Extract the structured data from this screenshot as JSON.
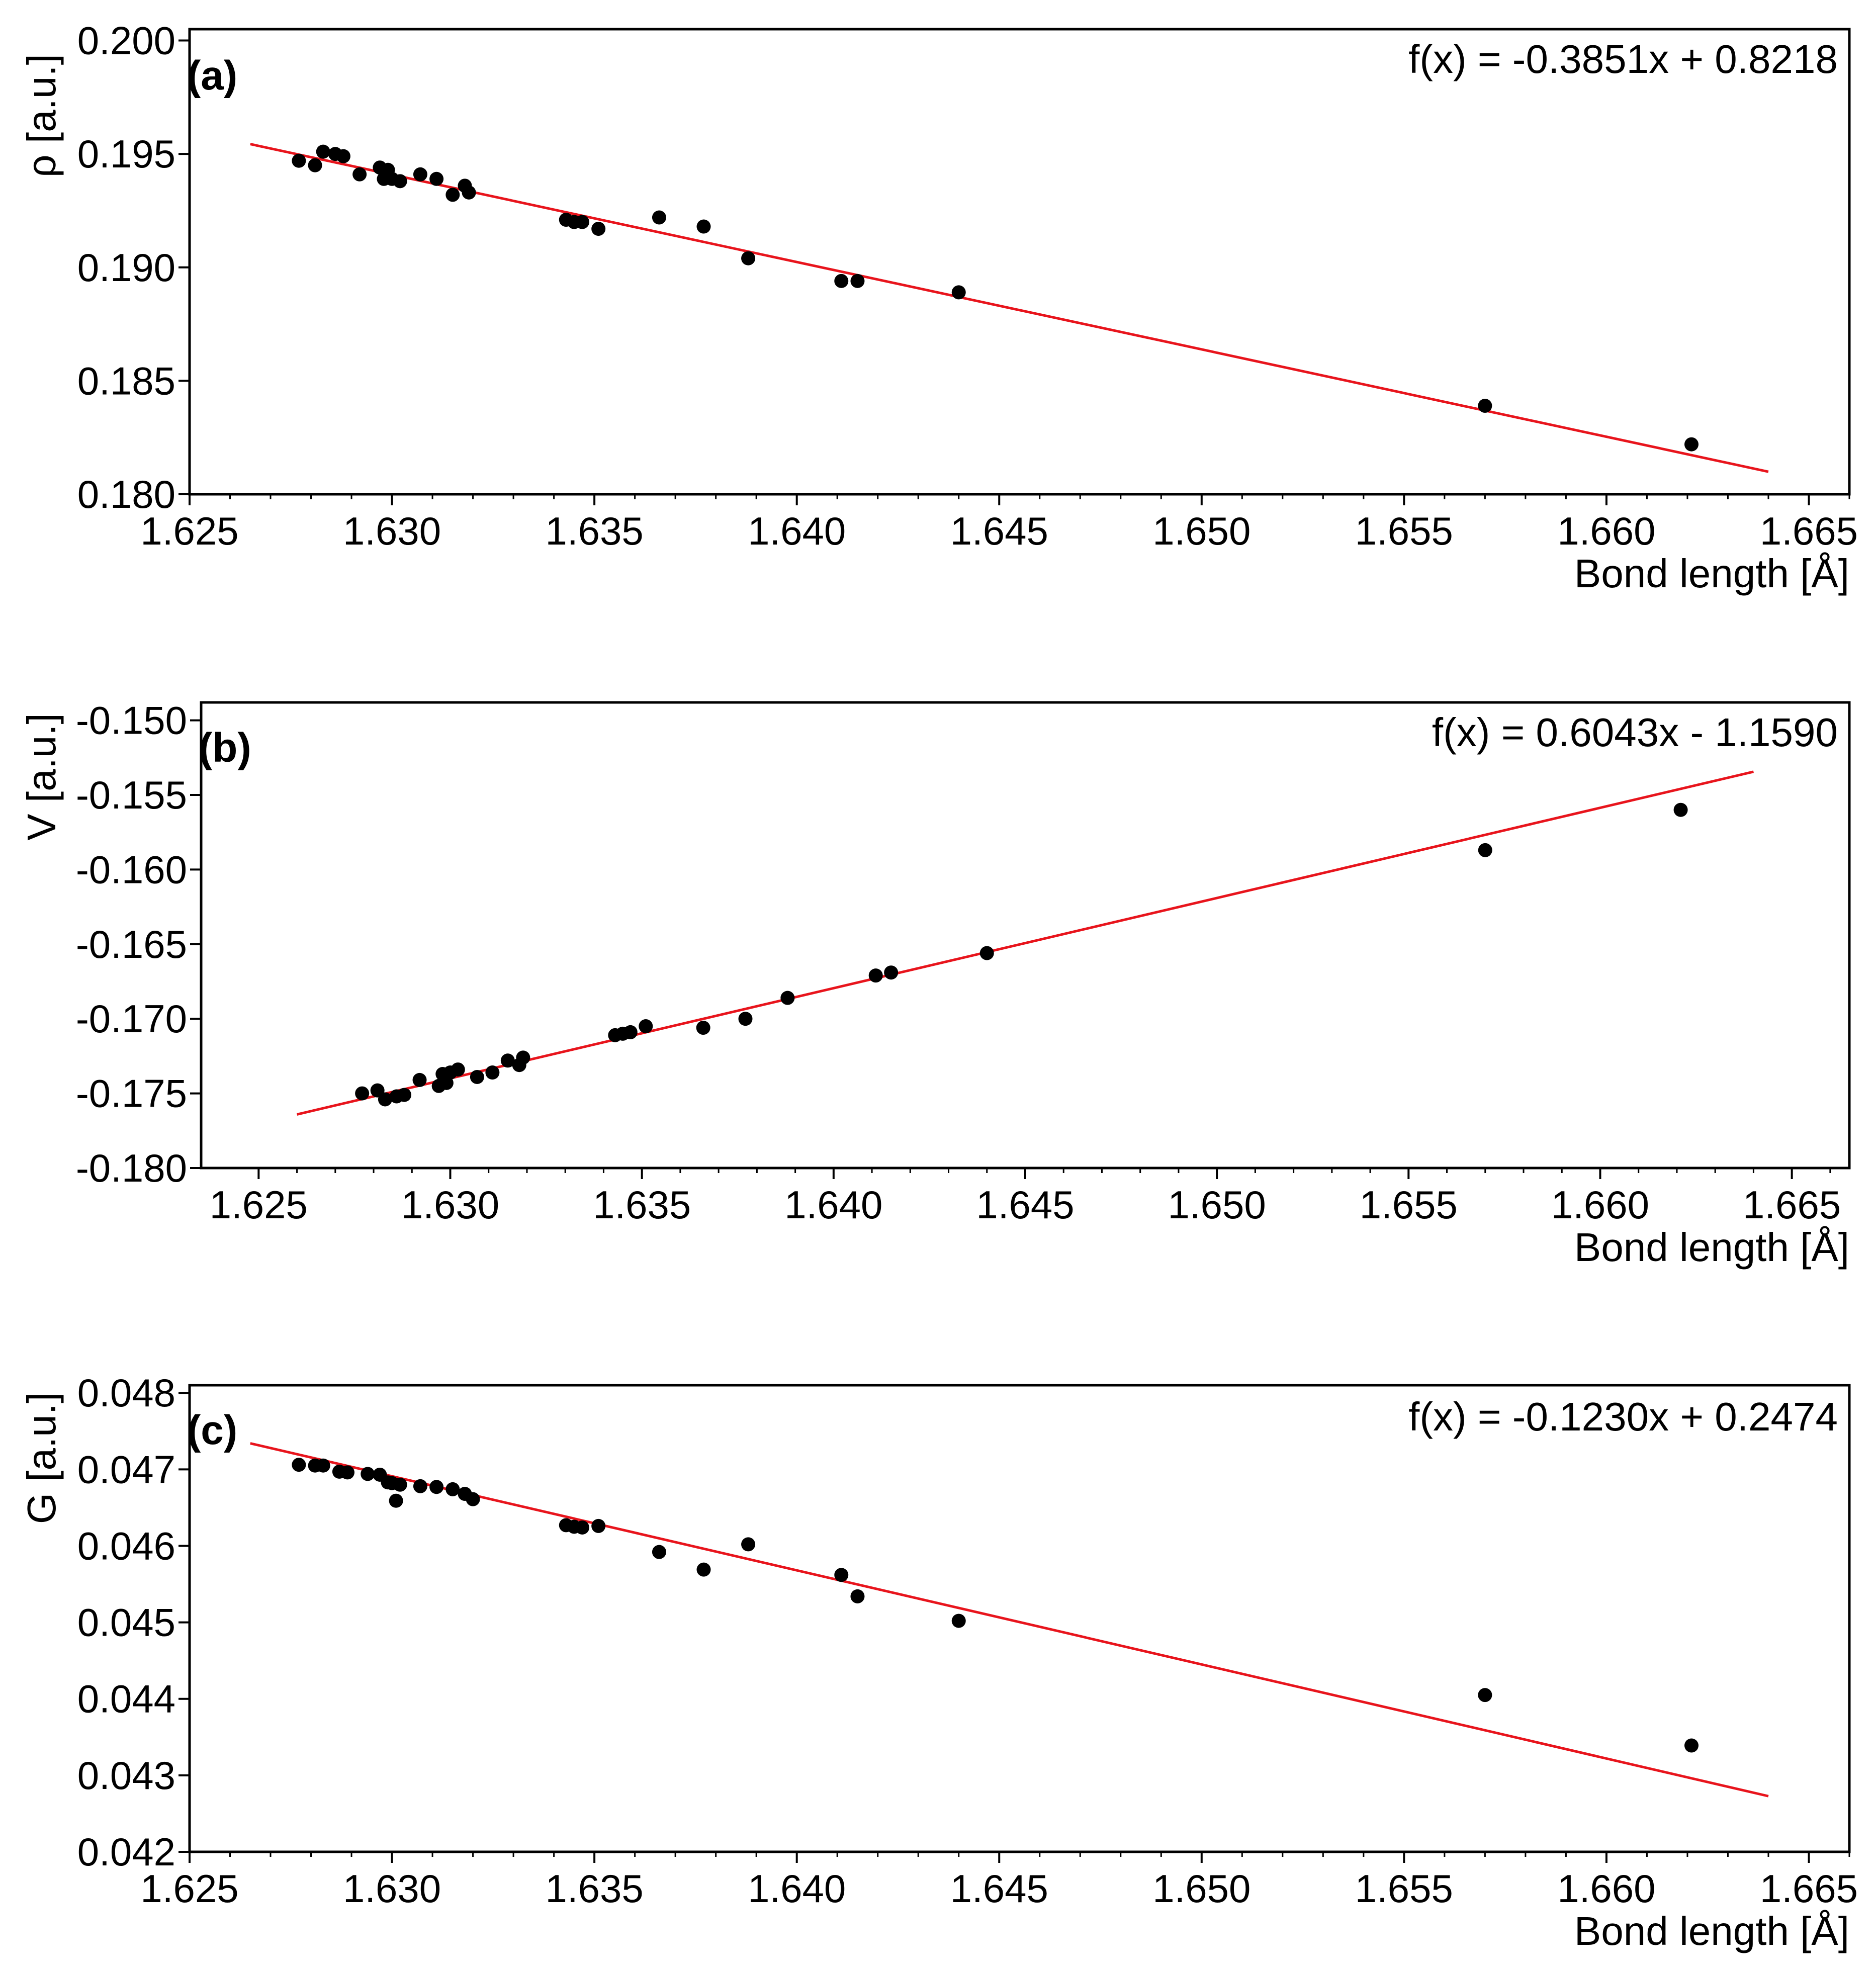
{
  "fit_color": "#e8141c",
  "point_color": "#000000",
  "chart_data": [
    {
      "type": "scatter",
      "panel_label": "(a)",
      "equation": "f(x) = -0.3851x + 0.8218",
      "fit": {
        "slope": -0.3851,
        "intercept": 0.8218,
        "x_start": 1.6265,
        "x_end": 1.664
      },
      "xlabel": "Bond length [Å]",
      "ylabel": "ρ [a.u.]",
      "xlim": [
        1.625,
        1.666
      ],
      "ylim": [
        0.18,
        0.2005
      ],
      "xticks": [
        "1.625",
        "1.630",
        "1.635",
        "1.640",
        "1.645",
        "1.650",
        "1.655",
        "1.660",
        "1.665"
      ],
      "yticks": [
        "0.180",
        "0.185",
        "0.190",
        "0.195",
        "0.200"
      ],
      "x": [
        1.6277,
        1.6281,
        1.6283,
        1.6286,
        1.6288,
        1.6292,
        1.6297,
        1.6298,
        1.6299,
        1.63,
        1.6302,
        1.6307,
        1.6311,
        1.6315,
        1.6318,
        1.6319,
        1.6343,
        1.6345,
        1.6347,
        1.6351,
        1.6366,
        1.6377,
        1.6388,
        1.6411,
        1.6415,
        1.644,
        1.657,
        1.6621
      ],
      "y": [
        0.1947,
        0.1945,
        0.1951,
        0.195,
        0.1949,
        0.1941,
        0.1944,
        0.1939,
        0.1943,
        0.1939,
        0.1938,
        0.1941,
        0.1939,
        0.1932,
        0.1936,
        0.1933,
        0.1921,
        0.192,
        0.192,
        0.1917,
        0.1922,
        0.1918,
        0.1904,
        0.1894,
        0.1894,
        0.1889,
        0.1839,
        0.1822
      ]
    },
    {
      "type": "scatter",
      "panel_label": "(b)",
      "equation": "f(x) = 0.6043x - 1.1590",
      "fit": {
        "slope": 0.6043,
        "intercept": -1.159,
        "x_start": 1.626,
        "x_end": 1.664
      },
      "xlabel": "Bond length [Å]",
      "ylabel": "V [a.u.]",
      "xlim": [
        1.6235,
        1.6665
      ],
      "ylim": [
        -0.18,
        -0.1488
      ],
      "xticks": [
        "1.625",
        "1.630",
        "1.635",
        "1.640",
        "1.645",
        "1.650",
        "1.655",
        "1.660",
        "1.665"
      ],
      "yticks": [
        "-0.180",
        "-0.175",
        "-0.170",
        "-0.165",
        "-0.160",
        "-0.155",
        "-0.150"
      ],
      "x": [
        1.6277,
        1.6281,
        1.6283,
        1.6286,
        1.6288,
        1.6292,
        1.6297,
        1.6298,
        1.6299,
        1.63,
        1.6302,
        1.6307,
        1.6311,
        1.6315,
        1.6318,
        1.6319,
        1.6343,
        1.6345,
        1.6347,
        1.6351,
        1.6366,
        1.6377,
        1.6388,
        1.6411,
        1.6415,
        1.644,
        1.657,
        1.6621
      ],
      "y": [
        -0.175,
        -0.1748,
        -0.1754,
        -0.1752,
        -0.1751,
        -0.1741,
        -0.1745,
        -0.1737,
        -0.1743,
        -0.1736,
        -0.1734,
        -0.1739,
        -0.1736,
        -0.1728,
        -0.1731,
        -0.1726,
        -0.1711,
        -0.171,
        -0.1709,
        -0.1705,
        -0.1706,
        -0.17,
        -0.1686,
        -0.1671,
        -0.1669,
        -0.1656,
        -0.1587,
        -0.156
      ]
    },
    {
      "type": "scatter",
      "panel_label": "(c)",
      "equation": "f(x) = -0.1230x + 0.2474",
      "fit": {
        "slope": -0.123,
        "intercept": 0.2474,
        "x_start": 1.6265,
        "x_end": 1.664
      },
      "xlabel": "Bond length [Å]",
      "ylabel": "G [a.u.]",
      "xlim": [
        1.625,
        1.666
      ],
      "ylim": [
        0.042,
        0.0481
      ],
      "xticks": [
        "1.625",
        "1.630",
        "1.635",
        "1.640",
        "1.645",
        "1.650",
        "1.655",
        "1.660",
        "1.665"
      ],
      "yticks": [
        "0.042",
        "0.043",
        "0.044",
        "0.045",
        "0.046",
        "0.047",
        "0.048"
      ],
      "x": [
        1.6277,
        1.6281,
        1.6283,
        1.6287,
        1.6289,
        1.6294,
        1.6297,
        1.6299,
        1.63,
        1.6301,
        1.6302,
        1.6307,
        1.6311,
        1.6315,
        1.6318,
        1.632,
        1.6343,
        1.6345,
        1.6347,
        1.6351,
        1.6366,
        1.6377,
        1.6388,
        1.6411,
        1.6415,
        1.644,
        1.657,
        1.6621
      ],
      "y": [
        0.04706,
        0.04705,
        0.04705,
        0.04697,
        0.04696,
        0.04694,
        0.04693,
        0.04683,
        0.04682,
        0.04659,
        0.0468,
        0.04678,
        0.04677,
        0.04674,
        0.04668,
        0.04661,
        0.04627,
        0.04625,
        0.04624,
        0.04626,
        0.04592,
        0.04569,
        0.04602,
        0.04562,
        0.04534,
        0.04502,
        0.04405,
        0.04339
      ]
    }
  ]
}
